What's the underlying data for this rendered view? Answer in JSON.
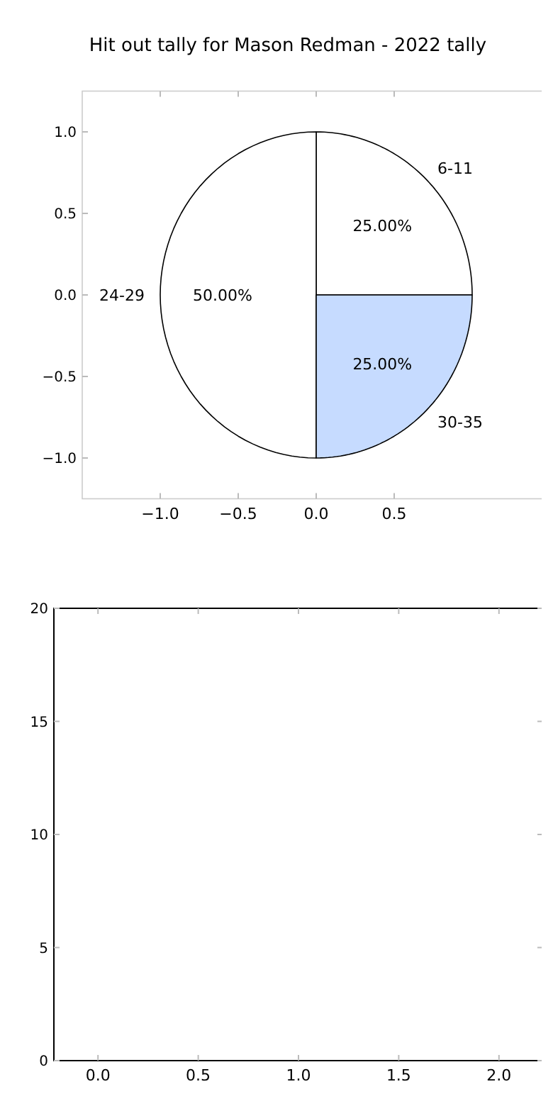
{
  "chart_data": [
    {
      "type": "scatter",
      "title": "Hit out tally for Mason Redman - 2022 tally",
      "xlim": [
        -1.5,
        1.5
      ],
      "ylim": [
        -1.25,
        1.25
      ],
      "xticks": [
        {
          "value": -1.0,
          "label": "−1.0"
        },
        {
          "value": -0.5,
          "label": "−0.5"
        },
        {
          "value": 0.0,
          "label": "0.0"
        },
        {
          "value": 0.5,
          "label": "0.5"
        }
      ],
      "yticks": [
        {
          "value": -1.0,
          "label": "−1.0"
        },
        {
          "value": -0.5,
          "label": "−0.5"
        },
        {
          "value": 0.0,
          "label": "0.0"
        },
        {
          "value": 0.5,
          "label": "0.5"
        },
        {
          "value": 1.0,
          "label": "1.0"
        }
      ]
    },
    {
      "type": "pie",
      "categories": [
        "6-11",
        "24-29",
        "30-35"
      ],
      "values": [
        25,
        50,
        25
      ],
      "value_labels": [
        "25.00%",
        "50.00%",
        "25.00%"
      ],
      "colors": [
        "#ffffff",
        "#ffffff",
        "#c6dbff"
      ]
    },
    {
      "type": "scatter",
      "xlim": [
        -0.22,
        2.22
      ],
      "ylim": [
        0,
        20
      ],
      "xticks": [
        {
          "value": 0.0,
          "label": "0.0"
        },
        {
          "value": 0.5,
          "label": "0.5"
        },
        {
          "value": 1.0,
          "label": "1.0"
        },
        {
          "value": 1.5,
          "label": "1.5"
        },
        {
          "value": 2.0,
          "label": "2.0"
        }
      ],
      "yticks": [
        0,
        5,
        10,
        15,
        20
      ]
    }
  ]
}
